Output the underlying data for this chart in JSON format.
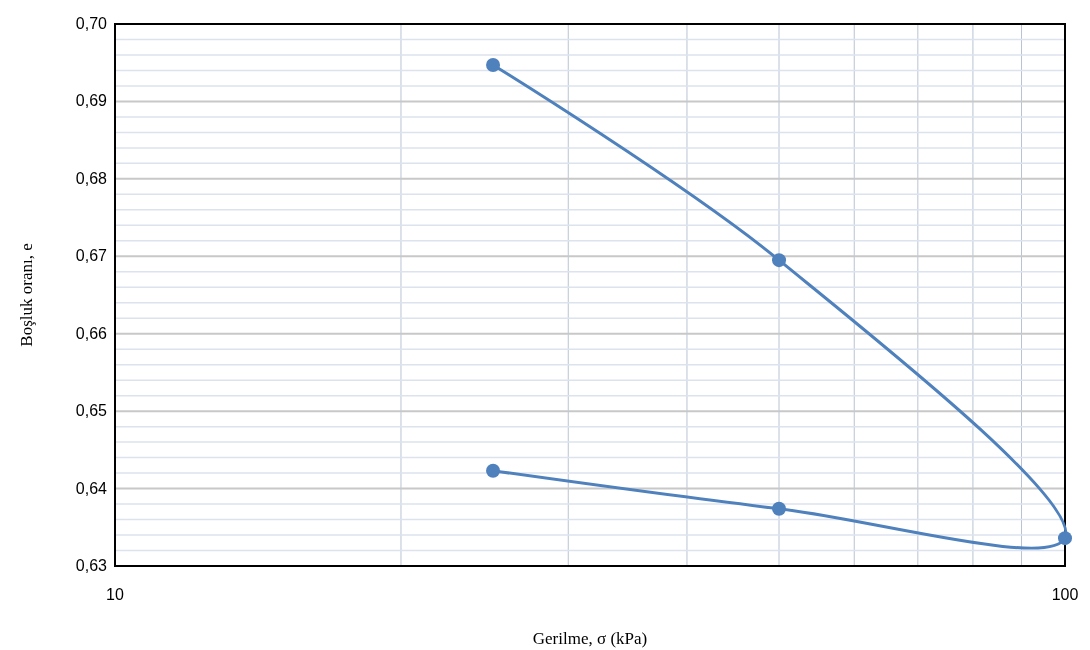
{
  "chart_data": {
    "type": "line",
    "xlabel": "Gerilme, σ (kPa)",
    "ylabel": "Boşluk oranı, e",
    "log": "x",
    "x": [
      25,
      50,
      100,
      50,
      25
    ],
    "series": [
      {
        "color": "#4f81bd",
        "values": [
          0.6947,
          0.6695,
          0.6336,
          0.6374,
          0.6423
        ]
      }
    ],
    "xlim": [
      10,
      100
    ],
    "xticks": [
      10,
      {
        "value": 20,
        "label": null
      },
      {
        "value": 30,
        "label": null
      },
      {
        "value": 40,
        "label": null
      },
      {
        "value": 50,
        "label": null
      },
      {
        "value": 60,
        "label": null
      },
      {
        "value": 70,
        "label": null
      },
      {
        "value": 80,
        "label": null
      },
      {
        "value": 90,
        "label": null
      },
      100
    ],
    "ylim": [
      0.63,
      0.7
    ],
    "yticks": [
      {
        "value": 0.63,
        "label": "0,63"
      },
      {
        "value": 0.632,
        "label": null
      },
      {
        "value": 0.634,
        "label": null
      },
      {
        "value": 0.636,
        "label": null
      },
      {
        "value": 0.638,
        "label": null
      },
      {
        "value": 0.64,
        "label": "0,64"
      },
      {
        "value": 0.642,
        "label": null
      },
      {
        "value": 0.644,
        "label": null
      },
      {
        "value": 0.646,
        "label": null
      },
      {
        "value": 0.648,
        "label": null
      },
      {
        "value": 0.65,
        "label": "0,65"
      },
      {
        "value": 0.652,
        "label": null
      },
      {
        "value": 0.654,
        "label": null
      },
      {
        "value": 0.656,
        "label": null
      },
      {
        "value": 0.658,
        "label": null
      },
      {
        "value": 0.66,
        "label": "0,66"
      },
      {
        "value": 0.662,
        "label": null
      },
      {
        "value": 0.664,
        "label": null
      },
      {
        "value": 0.666,
        "label": null
      },
      {
        "value": 0.668,
        "label": null
      },
      {
        "value": 0.67,
        "label": "0,67"
      },
      {
        "value": 0.672,
        "label": null
      },
      {
        "value": 0.674,
        "label": null
      },
      {
        "value": 0.676,
        "label": null
      },
      {
        "value": 0.678,
        "label": null
      },
      {
        "value": 0.68,
        "label": "0,68"
      },
      {
        "value": 0.682,
        "label": null
      },
      {
        "value": 0.684,
        "label": null
      },
      {
        "value": 0.686,
        "label": null
      },
      {
        "value": 0.688,
        "label": null
      },
      {
        "value": 0.69,
        "label": "0,69"
      },
      {
        "value": 0.692,
        "label": null
      },
      {
        "value": 0.694,
        "label": null
      },
      {
        "value": 0.696,
        "label": null
      },
      {
        "value": 0.698,
        "label": null
      },
      {
        "value": 0.7,
        "label": "0,70"
      }
    ],
    "grid": true,
    "marker": "circle",
    "line_style": "solid"
  }
}
